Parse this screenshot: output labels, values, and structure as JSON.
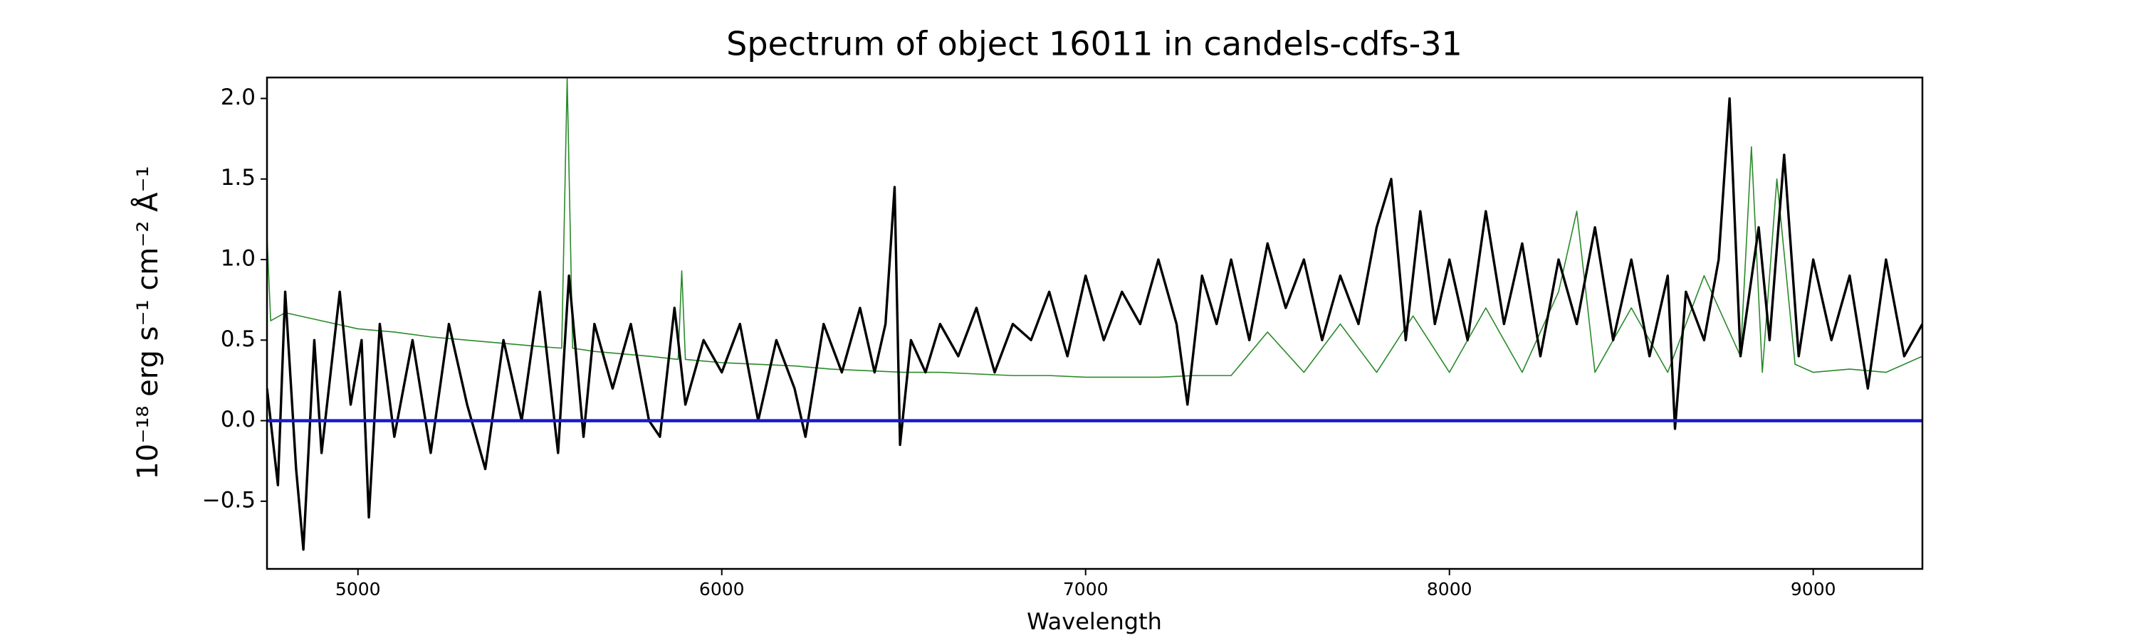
{
  "chart_data": {
    "type": "line",
    "title": "Spectrum of object 16011 in candels-cdfs-31",
    "x_label": "Wavelength",
    "y_label": "10⁻¹⁸ erg s⁻¹ cm⁻² Å⁻¹",
    "xlim": [
      4750,
      9300
    ],
    "ylim": [
      -0.92,
      2.13
    ],
    "xticks": [
      5000,
      6000,
      7000,
      8000,
      9000
    ],
    "yticks": [
      {
        "value": -0.5,
        "label": "−0.5"
      },
      {
        "value": 0,
        "label": "0.0"
      },
      0.5,
      {
        "value": 1,
        "label": "1.0"
      },
      1.5,
      {
        "value": 2,
        "label": "2.0"
      }
    ],
    "grid": false,
    "series": [
      {
        "color": "#2a8a2a",
        "x": [
          4750,
          4760,
          4800,
          4900,
          5000,
          5100,
          5200,
          5300,
          5400,
          5500,
          5560,
          5575,
          5590,
          5650,
          5700,
          5800,
          5880,
          5890,
          5900,
          6000,
          6100,
          6200,
          6300,
          6400,
          6500,
          6600,
          6700,
          6800,
          6900,
          7000,
          7100,
          7200,
          7300,
          7400,
          7500,
          7600,
          7700,
          7800,
          7900,
          8000,
          8100,
          8200,
          8300,
          8350,
          8400,
          8500,
          8600,
          8700,
          8800,
          8830,
          8860,
          8900,
          8950,
          9000,
          9100,
          9200,
          9300
        ],
        "values": [
          1.15,
          0.62,
          0.67,
          0.62,
          0.57,
          0.55,
          0.52,
          0.5,
          0.48,
          0.46,
          0.45,
          2.13,
          0.45,
          0.43,
          0.42,
          0.4,
          0.38,
          0.93,
          0.38,
          0.36,
          0.35,
          0.34,
          0.32,
          0.31,
          0.3,
          0.3,
          0.29,
          0.28,
          0.28,
          0.27,
          0.27,
          0.27,
          0.28,
          0.28,
          0.55,
          0.3,
          0.6,
          0.3,
          0.65,
          0.3,
          0.7,
          0.3,
          0.8,
          1.3,
          0.3,
          0.7,
          0.3,
          0.9,
          0.4,
          1.7,
          0.3,
          1.5,
          0.35,
          0.3,
          0.32,
          0.3,
          0.4
        ]
      },
      {
        "color": "#000000",
        "x": [
          4750,
          4780,
          4800,
          4830,
          4850,
          4880,
          4900,
          4930,
          4950,
          4980,
          5010,
          5030,
          5060,
          5100,
          5150,
          5200,
          5250,
          5300,
          5350,
          5400,
          5450,
          5500,
          5550,
          5580,
          5620,
          5650,
          5700,
          5750,
          5800,
          5830,
          5870,
          5900,
          5950,
          6000,
          6050,
          6100,
          6150,
          6200,
          6230,
          6280,
          6330,
          6380,
          6420,
          6450,
          6475,
          6490,
          6520,
          6560,
          6600,
          6650,
          6700,
          6750,
          6800,
          6850,
          6900,
          6950,
          7000,
          7050,
          7100,
          7150,
          7200,
          7250,
          7280,
          7320,
          7360,
          7400,
          7450,
          7500,
          7550,
          7600,
          7650,
          7700,
          7750,
          7800,
          7840,
          7880,
          7920,
          7960,
          8000,
          8050,
          8100,
          8150,
          8200,
          8250,
          8300,
          8350,
          8400,
          8450,
          8500,
          8550,
          8600,
          8620,
          8650,
          8700,
          8740,
          8770,
          8800,
          8850,
          8880,
          8920,
          8960,
          9000,
          9050,
          9100,
          9150,
          9200,
          9250,
          9300
        ],
        "values": [
          0.2,
          -0.4,
          0.8,
          -0.3,
          -0.8,
          0.5,
          -0.2,
          0.4,
          0.8,
          0.1,
          0.5,
          -0.6,
          0.6,
          -0.1,
          0.5,
          -0.2,
          0.6,
          0.1,
          -0.3,
          0.5,
          0.0,
          0.8,
          -0.2,
          0.9,
          -0.1,
          0.6,
          0.2,
          0.6,
          0.0,
          -0.1,
          0.7,
          0.1,
          0.5,
          0.3,
          0.6,
          0.0,
          0.5,
          0.2,
          -0.1,
          0.6,
          0.3,
          0.7,
          0.3,
          0.6,
          1.45,
          -0.15,
          0.5,
          0.3,
          0.6,
          0.4,
          0.7,
          0.3,
          0.6,
          0.5,
          0.8,
          0.4,
          0.9,
          0.5,
          0.8,
          0.6,
          1.0,
          0.6,
          0.1,
          0.9,
          0.6,
          1.0,
          0.5,
          1.1,
          0.7,
          1.0,
          0.5,
          0.9,
          0.6,
          1.2,
          1.5,
          0.5,
          1.3,
          0.6,
          1.0,
          0.5,
          1.3,
          0.6,
          1.1,
          0.4,
          1.0,
          0.6,
          1.2,
          0.5,
          1.0,
          0.4,
          0.9,
          -0.05,
          0.8,
          0.5,
          1.0,
          2.0,
          0.4,
          1.2,
          0.5,
          1.65,
          0.4,
          1.0,
          0.5,
          0.9,
          0.2,
          1.0,
          0.4,
          0.6
        ]
      },
      {
        "color": "#1a1acc",
        "x": [
          4750,
          9300
        ],
        "values": [
          0,
          0
        ]
      }
    ]
  }
}
